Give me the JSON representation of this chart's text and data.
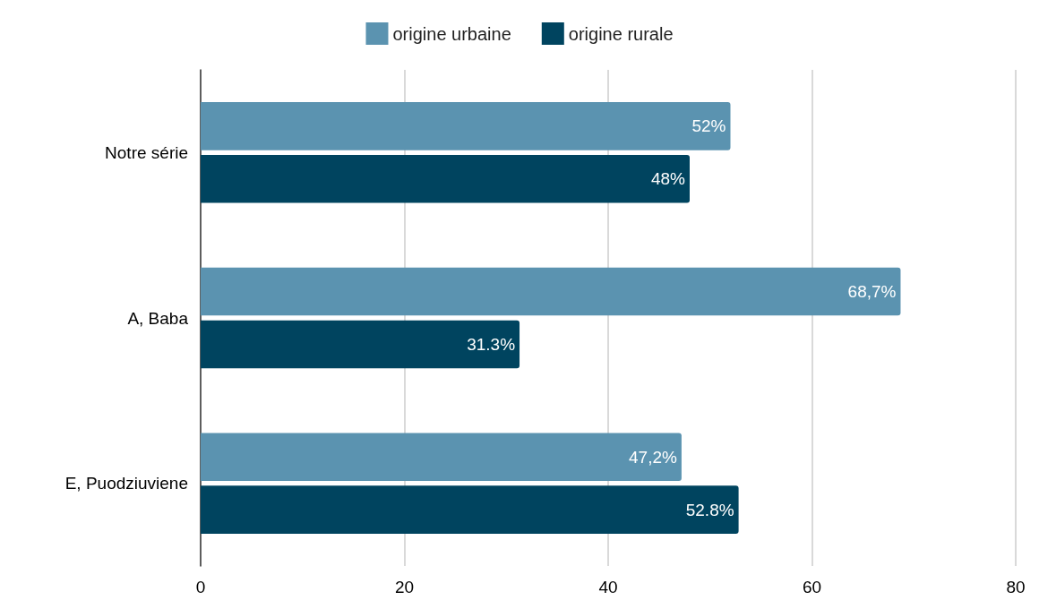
{
  "chart_data": {
    "type": "bar",
    "orientation": "horizontal",
    "categories": [
      "Notre série",
      "A, Baba",
      "E, Puodziuviene"
    ],
    "series": [
      {
        "name": "origine urbaine",
        "color": "#5b93b0",
        "values": [
          52,
          68.7,
          47.2
        ],
        "value_labels": [
          "52%",
          "68,7%",
          "47,2%"
        ]
      },
      {
        "name": "origine rurale",
        "color": "#00445f",
        "values": [
          48,
          31.3,
          52.8
        ],
        "value_labels": [
          "48%",
          "31.3%",
          "52.8%"
        ]
      }
    ],
    "xlim": [
      0,
      80
    ],
    "xticks": [
      0,
      20,
      40,
      60,
      80
    ],
    "grid": "x",
    "legend": "top"
  }
}
